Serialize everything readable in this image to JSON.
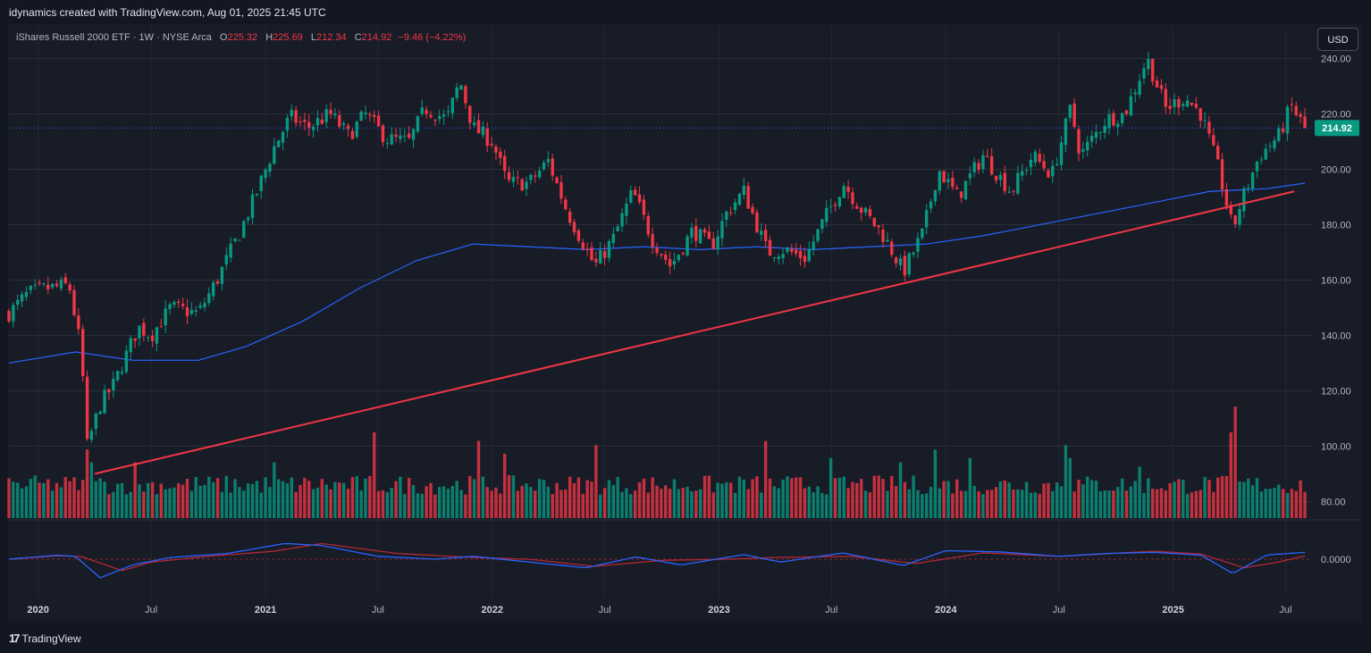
{
  "header": {
    "attribution": "idynamics created with TradingView.com, Aug 01, 2025 21:45 UTC"
  },
  "legend": {
    "symbol": "iShares Russell 2000 ETF · 1W · NYSE Arca",
    "open_label": "O",
    "open": "225.32",
    "high_label": "H",
    "high": "225.69",
    "low_label": "L",
    "low": "212.34",
    "close_label": "C",
    "close": "214.92",
    "change": "−9.46 (−4.22%)"
  },
  "currency_button": "USD",
  "footer": {
    "brand": "TradingView",
    "logo_icon": "tradingview-logo-icon"
  },
  "colors": {
    "background": "#181c27",
    "up": "#089981",
    "down": "#f23645",
    "ma": "#2962ff",
    "trendline": "#f23645",
    "last_price_badge": "#089981",
    "osc_fast": "#2962ff",
    "osc_slow": "#b22833"
  },
  "chart_data": {
    "type": "candlestick",
    "title": "iShares Russell 2000 ETF · 1W · NYSE Arca",
    "y_axis": {
      "range": [
        74,
        245
      ],
      "ticks": [
        "240.00",
        "220.00",
        "200.00",
        "180.00",
        "160.00",
        "140.00",
        "120.00",
        "100.00",
        "80.00"
      ],
      "tick_values": [
        240,
        220,
        200,
        180,
        160,
        140,
        120,
        100,
        80
      ]
    },
    "x_axis": {
      "range": [
        "2019-11-15",
        "2025-08-01"
      ],
      "ticks": [
        {
          "label": "2020",
          "date": "2020-01-01",
          "year": true
        },
        {
          "label": "Jul",
          "date": "2020-07-01"
        },
        {
          "label": "2021",
          "date": "2021-01-01",
          "year": true
        },
        {
          "label": "Jul",
          "date": "2021-07-01"
        },
        {
          "label": "2022",
          "date": "2022-01-01",
          "year": true
        },
        {
          "label": "Jul",
          "date": "2022-07-01"
        },
        {
          "label": "2023",
          "date": "2023-01-01",
          "year": true
        },
        {
          "label": "Jul",
          "date": "2023-07-01"
        },
        {
          "label": "2024",
          "date": "2024-01-01",
          "year": true
        },
        {
          "label": "Jul",
          "date": "2024-07-01"
        },
        {
          "label": "2025",
          "date": "2025-01-01",
          "year": true
        },
        {
          "label": "Jul",
          "date": "2025-07-01"
        }
      ]
    },
    "last_price": {
      "value": 214.92,
      "label": "214.92"
    },
    "price_path": [
      [
        "2019-11-15",
        148
      ],
      [
        "2019-12-15",
        155
      ],
      [
        "2020-01-15",
        157
      ],
      [
        "2020-02-20",
        158
      ],
      [
        "2020-03-10",
        135
      ],
      [
        "2020-03-20",
        100
      ],
      [
        "2020-04-10",
        115
      ],
      [
        "2020-05-01",
        122
      ],
      [
        "2020-06-10",
        143
      ],
      [
        "2020-07-01",
        140
      ],
      [
        "2020-08-01",
        150
      ],
      [
        "2020-09-15",
        148
      ],
      [
        "2020-10-15",
        160
      ],
      [
        "2020-11-20",
        177
      ],
      [
        "2020-12-15",
        190
      ],
      [
        "2021-01-15",
        208
      ],
      [
        "2021-02-10",
        219
      ],
      [
        "2021-03-10",
        215
      ],
      [
        "2021-04-15",
        220
      ],
      [
        "2021-05-15",
        212
      ],
      [
        "2021-06-10",
        220
      ],
      [
        "2021-07-15",
        211
      ],
      [
        "2021-08-20",
        210
      ],
      [
        "2021-09-15",
        222
      ],
      [
        "2021-10-20",
        218
      ],
      [
        "2021-11-10",
        232
      ],
      [
        "2021-12-01",
        215
      ],
      [
        "2022-01-01",
        210
      ],
      [
        "2022-01-25",
        195
      ],
      [
        "2022-03-01",
        195
      ],
      [
        "2022-04-01",
        203
      ],
      [
        "2022-05-01",
        185
      ],
      [
        "2022-06-15",
        165
      ],
      [
        "2022-07-15",
        175
      ],
      [
        "2022-08-15",
        192
      ],
      [
        "2022-09-15",
        175
      ],
      [
        "2022-10-15",
        165
      ],
      [
        "2022-11-20",
        178
      ],
      [
        "2022-12-20",
        172
      ],
      [
        "2023-01-15",
        185
      ],
      [
        "2023-02-10",
        192
      ],
      [
        "2023-03-20",
        170
      ],
      [
        "2023-04-15",
        171
      ],
      [
        "2023-05-20",
        168
      ],
      [
        "2023-06-15",
        180
      ],
      [
        "2023-07-20",
        195
      ],
      [
        "2023-08-20",
        185
      ],
      [
        "2023-09-20",
        177
      ],
      [
        "2023-10-25",
        163
      ],
      [
        "2023-11-25",
        177
      ],
      [
        "2023-12-20",
        200
      ],
      [
        "2024-01-20",
        190
      ],
      [
        "2024-03-01",
        205
      ],
      [
        "2024-04-15",
        192
      ],
      [
        "2024-05-20",
        205
      ],
      [
        "2024-06-20",
        198
      ],
      [
        "2024-07-20",
        222
      ],
      [
        "2024-08-05",
        205
      ],
      [
        "2024-09-15",
        218
      ],
      [
        "2024-10-15",
        220
      ],
      [
        "2024-11-20",
        240
      ],
      [
        "2024-12-20",
        222
      ],
      [
        "2025-01-20",
        226
      ],
      [
        "2025-02-15",
        220
      ],
      [
        "2025-03-15",
        200
      ],
      [
        "2025-04-07",
        178
      ],
      [
        "2025-04-20",
        188
      ],
      [
        "2025-05-20",
        205
      ],
      [
        "2025-06-20",
        212
      ],
      [
        "2025-07-10",
        223
      ],
      [
        "2025-08-01",
        214.92
      ]
    ],
    "moving_average": [
      [
        "2019-11-15",
        130
      ],
      [
        "2020-03-01",
        134
      ],
      [
        "2020-06-01",
        131
      ],
      [
        "2020-09-15",
        131
      ],
      [
        "2020-12-01",
        136
      ],
      [
        "2021-03-01",
        145
      ],
      [
        "2021-06-01",
        157
      ],
      [
        "2021-09-01",
        167
      ],
      [
        "2021-12-01",
        173
      ],
      [
        "2022-03-01",
        172
      ],
      [
        "2022-06-01",
        171
      ],
      [
        "2022-09-01",
        172
      ],
      [
        "2022-12-01",
        171
      ],
      [
        "2023-03-01",
        172
      ],
      [
        "2023-06-01",
        171
      ],
      [
        "2023-09-01",
        172
      ],
      [
        "2023-12-01",
        173
      ],
      [
        "2024-03-01",
        176
      ],
      [
        "2024-06-01",
        180
      ],
      [
        "2024-09-01",
        184
      ],
      [
        "2024-12-01",
        188
      ],
      [
        "2025-03-01",
        192
      ],
      [
        "2025-06-01",
        193
      ],
      [
        "2025-08-01",
        195
      ]
    ],
    "trendline": [
      [
        "2020-04-01",
        90
      ],
      [
        "2025-07-15",
        192
      ]
    ],
    "volume": {
      "big_weeks": [
        [
          "2020-03-20",
          1.6
        ],
        [
          "2020-03-27",
          1.3
        ],
        [
          "2020-06-05",
          1.3
        ],
        [
          "2021-01-15",
          1.3
        ],
        [
          "2021-06-25",
          2.0
        ],
        [
          "2021-12-10",
          1.8
        ],
        [
          "2022-01-21",
          1.5
        ],
        [
          "2022-06-17",
          1.7
        ],
        [
          "2023-03-17",
          1.8
        ],
        [
          "2023-06-30",
          1.4
        ],
        [
          "2023-10-20",
          1.3
        ],
        [
          "2023-12-15",
          1.6
        ],
        [
          "2024-02-09",
          1.4
        ],
        [
          "2024-07-12",
          1.7
        ],
        [
          "2024-07-19",
          1.4
        ],
        [
          "2024-11-08",
          1.2
        ],
        [
          "2025-04-04",
          2.0
        ],
        [
          "2025-04-11",
          2.6
        ]
      ]
    },
    "oscillator": {
      "zero_label": "0.0000",
      "fast": [
        [
          "2019-11-15",
          0
        ],
        [
          "2020-02-01",
          1.4
        ],
        [
          "2020-03-01",
          1.0
        ],
        [
          "2020-04-10",
          -6.5
        ],
        [
          "2020-06-01",
          -2
        ],
        [
          "2020-08-01",
          0.6
        ],
        [
          "2020-11-01",
          2
        ],
        [
          "2021-02-01",
          5.5
        ],
        [
          "2021-04-01",
          4.8
        ],
        [
          "2021-07-01",
          1
        ],
        [
          "2021-10-01",
          0
        ],
        [
          "2021-12-01",
          1
        ],
        [
          "2022-03-01",
          -1
        ],
        [
          "2022-06-01",
          -3
        ],
        [
          "2022-08-20",
          0.8
        ],
        [
          "2022-11-01",
          -2
        ],
        [
          "2023-02-10",
          1.6
        ],
        [
          "2023-04-10",
          -1
        ],
        [
          "2023-07-20",
          2.2
        ],
        [
          "2023-10-25",
          -2.2
        ],
        [
          "2024-01-01",
          3.0
        ],
        [
          "2024-04-01",
          2.5
        ],
        [
          "2024-07-01",
          1
        ],
        [
          "2024-09-15",
          2
        ],
        [
          "2024-12-01",
          2.4
        ],
        [
          "2025-02-15",
          1.4
        ],
        [
          "2025-04-07",
          -5
        ],
        [
          "2025-06-01",
          1.5
        ],
        [
          "2025-08-01",
          2.4
        ]
      ],
      "slow": [
        [
          "2019-11-15",
          0
        ],
        [
          "2020-02-01",
          1.2
        ],
        [
          "2020-03-10",
          1.0
        ],
        [
          "2020-05-15",
          -4
        ],
        [
          "2020-07-01",
          -1
        ],
        [
          "2020-10-01",
          1
        ],
        [
          "2021-01-15",
          2.8
        ],
        [
          "2021-04-01",
          5.5
        ],
        [
          "2021-08-01",
          2
        ],
        [
          "2021-12-01",
          0.6
        ],
        [
          "2022-03-01",
          0
        ],
        [
          "2022-06-15",
          -2.5
        ],
        [
          "2022-10-01",
          -0.4
        ],
        [
          "2023-01-15",
          0
        ],
        [
          "2023-04-01",
          0.6
        ],
        [
          "2023-08-01",
          1
        ],
        [
          "2023-11-15",
          -1.5
        ],
        [
          "2024-03-01",
          2.2
        ],
        [
          "2024-07-01",
          1
        ],
        [
          "2024-12-01",
          2.8
        ],
        [
          "2025-02-15",
          1.8
        ],
        [
          "2025-04-25",
          -3
        ],
        [
          "2025-06-20",
          -1
        ],
        [
          "2025-08-01",
          1.2
        ]
      ]
    }
  }
}
